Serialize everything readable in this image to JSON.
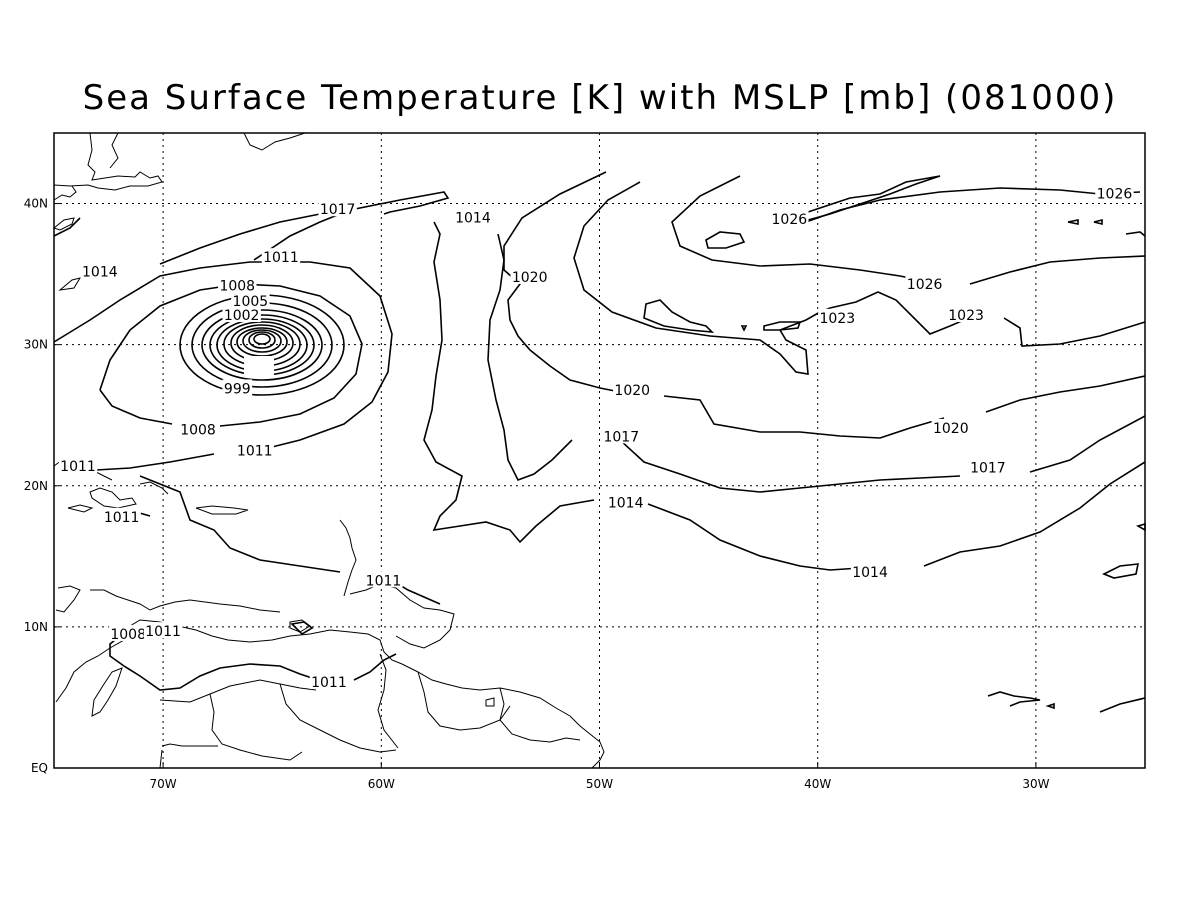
{
  "title": "Sea Surface Temperature [K] with MSLP [mb] (081000)",
  "map": {
    "lon_ticks": [
      {
        "lon": -70,
        "label": "70W"
      },
      {
        "lon": -60,
        "label": "60W"
      },
      {
        "lon": -50,
        "label": "50W"
      },
      {
        "lon": -40,
        "label": "40W"
      },
      {
        "lon": -30,
        "label": "30W"
      }
    ],
    "lat_ticks": [
      {
        "lat": 0,
        "label": "EQ"
      },
      {
        "lat": 10,
        "label": "10N"
      },
      {
        "lat": 20,
        "label": "20N"
      },
      {
        "lat": 30,
        "label": "30N"
      },
      {
        "lat": 40,
        "label": "40N"
      }
    ],
    "extent": {
      "lon": [
        -75,
        -25
      ],
      "lat": [
        0,
        45
      ]
    },
    "grid": true,
    "contour_labels": [
      {
        "text": "1026",
        "lon": -26.4,
        "lat": 40.7
      },
      {
        "text": "1026",
        "lon": -41.3,
        "lat": 38.9
      },
      {
        "text": "1026",
        "lon": -35.1,
        "lat": 34.3
      },
      {
        "text": "1023",
        "lon": -39.1,
        "lat": 31.9
      },
      {
        "text": "1023",
        "lon": -33.2,
        "lat": 32.1
      },
      {
        "text": "1020",
        "lon": -53.2,
        "lat": 34.8
      },
      {
        "text": "1020",
        "lon": -48.5,
        "lat": 26.8
      },
      {
        "text": "1020",
        "lon": -33.9,
        "lat": 24.1
      },
      {
        "text": "1017",
        "lon": -62.0,
        "lat": 39.6
      },
      {
        "text": "1014",
        "lon": -55.8,
        "lat": 39.0
      },
      {
        "text": "1017",
        "lon": -49.0,
        "lat": 23.5
      },
      {
        "text": "1017",
        "lon": -32.2,
        "lat": 21.3
      },
      {
        "text": "1014",
        "lon": -48.8,
        "lat": 18.8
      },
      {
        "text": "1014",
        "lon": -37.6,
        "lat": 13.9
      },
      {
        "text": "1011",
        "lon": -64.6,
        "lat": 36.2
      },
      {
        "text": "1014",
        "lon": -72.9,
        "lat": 35.2
      },
      {
        "text": "1008",
        "lon": -66.6,
        "lat": 34.2
      },
      {
        "text": "1005",
        "lon": -66.0,
        "lat": 33.1
      },
      {
        "text": "1002",
        "lon": -66.4,
        "lat": 32.1
      },
      {
        "text": "999",
        "lon": -66.6,
        "lat": 26.9
      },
      {
        "text": "1008",
        "lon": -68.4,
        "lat": 24.0
      },
      {
        "text": "1011",
        "lon": -65.8,
        "lat": 22.5
      },
      {
        "text": "1011",
        "lon": -73.9,
        "lat": 21.4
      },
      {
        "text": "1011",
        "lon": -71.9,
        "lat": 17.8
      },
      {
        "text": "1011",
        "lon": -59.9,
        "lat": 13.3
      },
      {
        "text": "1008",
        "lon": -71.6,
        "lat": 9.5
      },
      {
        "text": "1011",
        "lon": -70.0,
        "lat": 9.7
      },
      {
        "text": "1011",
        "lon": -62.4,
        "lat": 6.1
      }
    ]
  }
}
